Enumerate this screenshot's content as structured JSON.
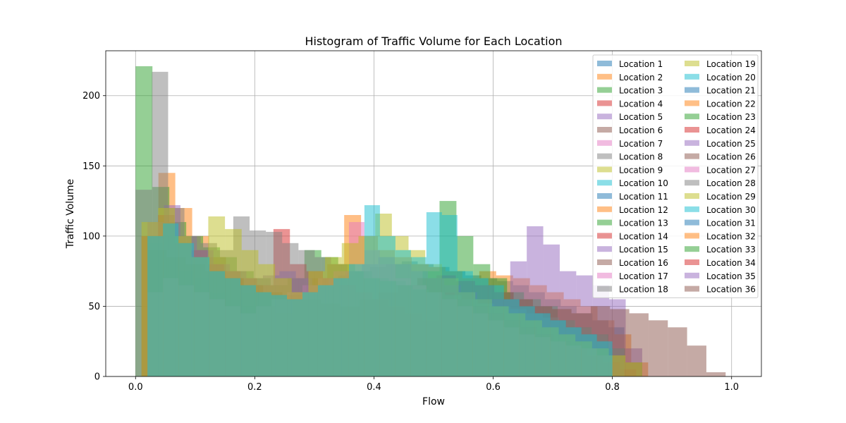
{
  "chart_data": {
    "type": "histogram",
    "title": "Histogram of Traffic Volume for Each Location",
    "xlabel": "Flow",
    "ylabel": "Traffic Volume",
    "xlim": [
      -0.05,
      1.05
    ],
    "ylim": [
      0,
      232
    ],
    "x_ticks": [
      0.0,
      0.2,
      0.4,
      0.6,
      0.8,
      1.0
    ],
    "x_tick_labels": [
      "0.0",
      "0.2",
      "0.4",
      "0.6",
      "0.8",
      "1.0"
    ],
    "y_ticks": [
      0,
      50,
      100,
      150,
      200
    ],
    "y_tick_labels": [
      "0",
      "50",
      "100",
      "150",
      "200"
    ],
    "grid": true,
    "legend_position": "top-right",
    "legend_columns": 2,
    "bar_alpha": 0.5,
    "palette": [
      "#1f77b4",
      "#ff7f0e",
      "#2ca02c",
      "#d62728",
      "#9467bd",
      "#8c564b",
      "#e377c2",
      "#7f7f7f",
      "#bcbd22",
      "#17becf"
    ],
    "series": [
      {
        "name": "Location 1",
        "x_min": 0.02,
        "x_max": 0.82,
        "counts": [
          95,
          100,
          75,
          70,
          60,
          55,
          50,
          50,
          55,
          60,
          65,
          70,
          72,
          75,
          78,
          80,
          82,
          80,
          78,
          75,
          72,
          70,
          68,
          65,
          60,
          55,
          50,
          45,
          40,
          35
        ]
      },
      {
        "name": "Location 2",
        "x_min": 0.01,
        "x_max": 0.86,
        "counts": [
          100,
          145,
          120,
          100,
          85,
          70,
          60,
          50,
          45,
          60,
          70,
          80,
          115,
          100,
          90,
          85,
          80,
          78,
          75,
          70,
          75,
          72,
          70,
          65,
          60,
          55,
          50,
          40,
          30,
          10
        ]
      },
      {
        "name": "Location 3",
        "x_min": 0.0,
        "x_max": 0.85,
        "counts": [
          221,
          135,
          110,
          100,
          92,
          85,
          75,
          70,
          65,
          70,
          90,
          85,
          80,
          75,
          70,
          68,
          65,
          75,
          125,
          100,
          80,
          70,
          60,
          55,
          50,
          40,
          35,
          30,
          20,
          10
        ]
      },
      {
        "name": "Location 4",
        "x_min": 0.01,
        "x_max": 0.84,
        "counts": [
          100,
          115,
          95,
          90,
          80,
          75,
          70,
          65,
          105,
          80,
          75,
          70,
          65,
          60,
          55,
          50,
          45,
          40,
          60,
          55,
          50,
          45,
          40,
          35,
          30,
          25,
          20,
          15,
          10,
          5
        ]
      },
      {
        "name": "Location 5",
        "x_min": 0.02,
        "x_max": 0.85,
        "counts": [
          110,
          122,
          100,
          90,
          80,
          75,
          70,
          72,
          75,
          70,
          65,
          70,
          75,
          80,
          85,
          80,
          75,
          70,
          65,
          60,
          55,
          55,
          82,
          107,
          94,
          75,
          72,
          65,
          55,
          20
        ]
      },
      {
        "name": "Location 6",
        "x_min": 0.02,
        "x_max": 0.99,
        "counts": [
          90,
          85,
          80,
          75,
          70,
          65,
          60,
          58,
          55,
          52,
          50,
          55,
          60,
          65,
          70,
          72,
          68,
          65,
          60,
          55,
          50,
          48,
          45,
          50,
          48,
          45,
          40,
          35,
          22,
          3
        ]
      },
      {
        "name": "Location 7",
        "x_min": 0.02,
        "x_max": 0.8,
        "counts": [
          60,
          70,
          65,
          60,
          55,
          50,
          45,
          50,
          55,
          60,
          65,
          70,
          75,
          110,
          90,
          80,
          70,
          65,
          60,
          55,
          50,
          45,
          40,
          35,
          30,
          28,
          25,
          22,
          20,
          15
        ]
      },
      {
        "name": "Location 8",
        "x_min": 0.0,
        "x_max": 0.82,
        "counts": [
          133,
          217,
          120,
          100,
          95,
          90,
          114,
          104,
          103,
          95,
          90,
          85,
          80,
          75,
          70,
          68,
          65,
          62,
          60,
          58,
          55,
          52,
          50,
          48,
          45,
          42,
          40,
          35,
          30,
          20
        ]
      },
      {
        "name": "Location 9",
        "x_min": 0.01,
        "x_max": 0.85,
        "counts": [
          110,
          120,
          100,
          85,
          114,
          105,
          90,
          80,
          70,
          60,
          75,
          85,
          95,
          100,
          116,
          100,
          90,
          80,
          70,
          60,
          55,
          50,
          45,
          40,
          35,
          30,
          25,
          20,
          15,
          10
        ]
      },
      {
        "name": "Location 10",
        "x_min": 0.02,
        "x_max": 0.8,
        "counts": [
          100,
          109,
          95,
          85,
          75,
          70,
          65,
          60,
          58,
          55,
          60,
          65,
          70,
          80,
          122,
          100,
          90,
          85,
          117,
          115,
          75,
          70,
          65,
          55,
          50,
          45,
          40,
          35,
          30,
          25
        ]
      }
    ],
    "faded_series_names": [
      "Location 11",
      "Location 12",
      "Location 13",
      "Location 14",
      "Location 15",
      "Location 16",
      "Location 17",
      "Location 18",
      "Location 19",
      "Location 20",
      "Location 21",
      "Location 22",
      "Location 23",
      "Location 24",
      "Location 25",
      "Location 26",
      "Location 27",
      "Location 28",
      "Location 29",
      "Location 30",
      "Location 31",
      "Location 32",
      "Location 33",
      "Location 34",
      "Location 35",
      "Location 36"
    ]
  }
}
